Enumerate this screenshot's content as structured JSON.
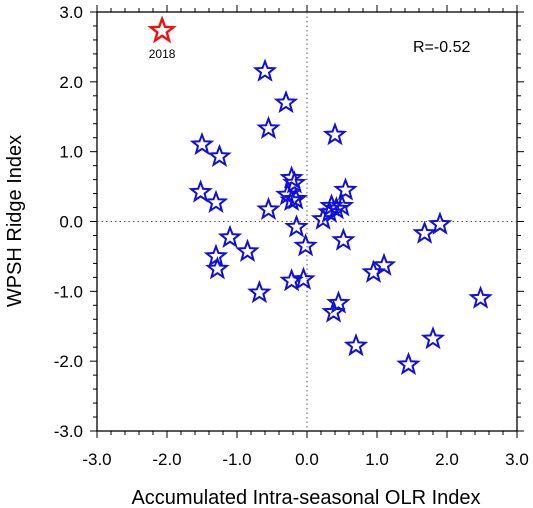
{
  "chart_data": {
    "type": "scatter",
    "title": "",
    "xlabel": "Accumulated Intra-seasonal OLR Index",
    "ylabel": "WPSH Ridge Index",
    "xlim": [
      -3.0,
      3.0
    ],
    "ylim": [
      -3.0,
      3.0
    ],
    "xticks": [
      "-3.0",
      "-2.0",
      "-1.0",
      "0.0",
      "1.0",
      "2.0",
      "3.0"
    ],
    "yticks": [
      "3.0",
      "2.0",
      "1.0",
      "0.0",
      "-1.0",
      "-2.0",
      "-3.0"
    ],
    "zero_reference_lines": true,
    "annotation": "R=-0.52",
    "marker": "star",
    "series": [
      {
        "color": "#1010d8",
        "points": [
          [
            -0.6,
            2.15
          ],
          [
            -0.3,
            1.7
          ],
          [
            -0.55,
            1.33
          ],
          [
            0.4,
            1.24
          ],
          [
            -1.5,
            1.1
          ],
          [
            -1.25,
            0.93
          ],
          [
            -0.22,
            0.62
          ],
          [
            -0.18,
            0.55
          ],
          [
            -1.52,
            0.42
          ],
          [
            -1.3,
            0.27
          ],
          [
            -0.55,
            0.17
          ],
          [
            -0.28,
            0.38
          ],
          [
            -0.22,
            0.3
          ],
          [
            -0.16,
            0.32
          ],
          [
            0.55,
            0.45
          ],
          [
            0.35,
            0.22
          ],
          [
            0.42,
            0.18
          ],
          [
            0.5,
            0.22
          ],
          [
            0.32,
            0.13
          ],
          [
            0.23,
            0.03
          ],
          [
            -0.15,
            -0.08
          ],
          [
            -1.1,
            -0.23
          ],
          [
            -0.85,
            -0.43
          ],
          [
            -0.02,
            -0.35
          ],
          [
            0.52,
            -0.27
          ],
          [
            -1.3,
            -0.5
          ],
          [
            -1.28,
            -0.68
          ],
          [
            1.68,
            -0.17
          ],
          [
            1.9,
            -0.04
          ],
          [
            1.1,
            -0.63
          ],
          [
            0.95,
            -0.73
          ],
          [
            -0.68,
            -1.02
          ],
          [
            -0.22,
            -0.85
          ],
          [
            -0.05,
            -0.83
          ],
          [
            2.48,
            -1.1
          ],
          [
            0.45,
            -1.17
          ],
          [
            0.38,
            -1.3
          ],
          [
            0.7,
            -1.78
          ],
          [
            1.8,
            -1.68
          ],
          [
            1.45,
            -2.05
          ]
        ]
      },
      {
        "name": "2018",
        "color": "#ee1111",
        "points": [
          [
            -2.07,
            2.73
          ]
        ]
      }
    ]
  }
}
